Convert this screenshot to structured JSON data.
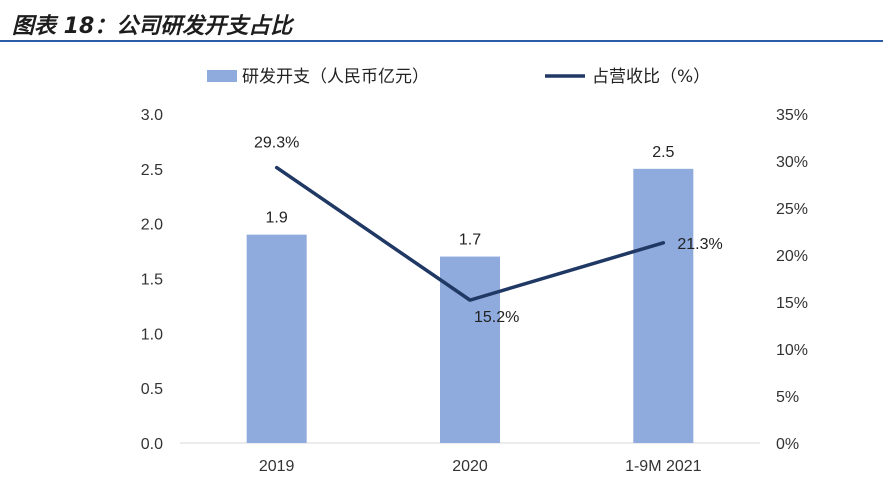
{
  "figure": {
    "title": "图表 18：公司研发开支占比"
  },
  "chart_data": {
    "type": "bar+line",
    "categories": [
      "2019",
      "2020",
      "1-9M 2021"
    ],
    "series": [
      {
        "name": "研发开支（人民币亿元）",
        "type": "bar",
        "axis": "left",
        "values": [
          1.9,
          1.7,
          2.5
        ],
        "labels": [
          "1.9",
          "1.7",
          "2.5"
        ],
        "color": "#8faadc"
      },
      {
        "name": "占营收比（%）",
        "type": "line",
        "axis": "right",
        "values": [
          29.3,
          15.2,
          21.3
        ],
        "labels": [
          "29.3%",
          "15.2%",
          "21.3%"
        ],
        "color": "#203864"
      }
    ],
    "y_left": {
      "min": 0,
      "max": 3.0,
      "ticks": [
        "0.0",
        "0.5",
        "1.0",
        "1.5",
        "2.0",
        "2.5",
        "3.0"
      ]
    },
    "y_right": {
      "min": 0,
      "max": 35,
      "ticks": [
        "0%",
        "5%",
        "10%",
        "15%",
        "20%",
        "25%",
        "30%",
        "35%"
      ]
    },
    "legend_position": "top-center",
    "grid": false
  }
}
